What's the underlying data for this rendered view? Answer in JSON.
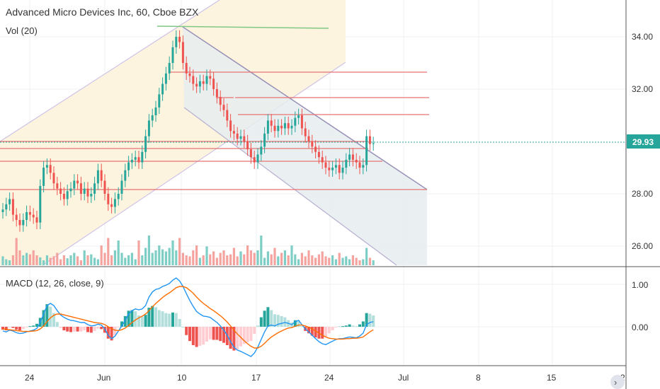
{
  "header": {
    "title": "Advanced Micro Devices Inc, 60, Cboe BZX",
    "volume_label": "Vol (20)",
    "macd_label": "MACD (12, 26, close, 9)"
  },
  "colors": {
    "up": "#26a69a",
    "down": "#ef5350",
    "vol_up": "#7fcec6",
    "vol_down": "#f4a39f",
    "last_price": "#26a69a",
    "macd_line": "#2196f3",
    "signal_line": "#ff6d00",
    "channel_fill_up": "#fdf3dc",
    "channel_fill_down": "#e6ecef",
    "hline": "#e57373",
    "top_line": "#81c784"
  },
  "price_axis": {
    "ticks": [
      "34.00",
      "32.00",
      "28.00",
      "26.00"
    ],
    "last_price": "29.93"
  },
  "macd_axis": {
    "ticks": [
      "1.00",
      "0.00"
    ]
  },
  "time_axis": {
    "labels": [
      "24",
      "Jun",
      "10",
      "17",
      "24",
      "Jul",
      "8",
      "15",
      "2"
    ]
  },
  "chart_data": [
    {
      "type": "candlestick",
      "title": "Advanced Micro Devices Inc, 60, Cboe BZX",
      "ylim": [
        25.3,
        35.3
      ],
      "last_price": 29.93,
      "series": [
        {
          "name": "Advanced Micro Devices Inc",
          "close": [
            27.4,
            27.6,
            27.8,
            27.2,
            27.0,
            26.8,
            27.0,
            27.3,
            27.2,
            27.1,
            26.9,
            28.3,
            29.0,
            29.1,
            28.8,
            28.4,
            28.2,
            28.0,
            27.8,
            28.1,
            28.2,
            28.5,
            28.4,
            28.0,
            28.2,
            27.9,
            28.0,
            28.4,
            28.9,
            28.5,
            28.0,
            27.6,
            27.5,
            27.8,
            28.0,
            28.5,
            28.9,
            29.2,
            29.3,
            29.4,
            29.2,
            29.6,
            30.2,
            30.8,
            31.0,
            31.3,
            31.8,
            32.2,
            32.6,
            33.0,
            33.6,
            34.0,
            33.8,
            33.0,
            32.6,
            32.5,
            32.2,
            32.1,
            32.3,
            32.2,
            32.5,
            32.4,
            32.0,
            31.7,
            31.4,
            31.2,
            30.8,
            30.4,
            30.3,
            30.1,
            30.2,
            30.0,
            29.7,
            29.4,
            29.2,
            29.5,
            29.8,
            30.3,
            30.8,
            30.6,
            30.4,
            30.6,
            30.5,
            30.7,
            30.5,
            30.6,
            30.9,
            31.0,
            30.5,
            30.2,
            30.0,
            29.8,
            29.6,
            29.4,
            29.2,
            29.0,
            28.9,
            29.0,
            29.1,
            28.8,
            29.0,
            29.3,
            29.5,
            29.3,
            29.2,
            29.0,
            29.1,
            30.2,
            29.9,
            29.93
          ],
          "ohlc_source": "hourly bars read from the chart, values approximate"
        }
      ]
    },
    {
      "type": "bar",
      "title": "Vol (20)",
      "values": [
        0.18,
        0.12,
        0.1,
        0.2,
        0.55,
        0.3,
        0.2,
        0.25,
        0.22,
        0.3,
        0.2,
        0.16,
        0.1,
        0.2,
        0.15,
        0.18,
        0.25,
        0.12,
        0.2,
        0.14,
        0.2,
        0.25,
        0.18,
        0.1,
        0.3,
        0.2,
        0.22,
        0.15,
        0.12,
        0.4,
        0.25,
        0.55,
        0.2,
        0.3,
        0.5,
        0.25,
        0.15,
        0.2,
        0.25,
        0.12,
        0.5,
        0.2,
        0.35,
        0.6,
        0.25,
        0.3,
        0.4,
        0.32,
        0.28,
        0.35,
        0.5,
        0.3,
        0.55,
        0.25,
        0.2,
        0.18,
        0.3,
        0.4,
        0.15,
        0.2,
        0.38,
        0.22,
        0.28,
        0.15,
        0.25,
        0.3,
        0.2,
        0.22,
        0.35,
        0.18,
        0.28,
        0.22,
        0.4,
        0.3,
        0.25,
        0.3,
        0.6,
        0.15,
        0.28,
        0.22,
        0.35,
        0.18,
        0.25,
        0.3,
        0.2,
        0.4,
        0.22,
        0.12,
        0.25,
        0.18,
        0.3,
        0.2,
        0.15,
        0.22,
        0.28,
        0.18,
        0.15,
        0.2,
        0.12,
        0.25,
        0.15,
        0.18,
        0.12,
        0.2,
        0.15,
        0.1,
        0.12,
        0.35,
        0.15,
        0.1
      ]
    },
    {
      "type": "line",
      "title": "MACD (12, 26, close, 9)",
      "ylim": [
        -0.95,
        1.3
      ],
      "series": [
        {
          "name": "MACD",
          "values": [
            -0.1,
            -0.12,
            -0.08,
            -0.1,
            -0.14,
            -0.16,
            -0.15,
            -0.12,
            -0.1,
            -0.08,
            -0.04,
            0.1,
            0.3,
            0.5,
            0.55,
            0.5,
            0.38,
            0.28,
            0.22,
            0.18,
            0.15,
            0.14,
            0.12,
            0.1,
            0.1,
            0.05,
            0.02,
            0.03,
            0.06,
            0.04,
            -0.05,
            -0.2,
            -0.28,
            -0.22,
            -0.1,
            0.02,
            0.15,
            0.3,
            0.38,
            0.42,
            0.4,
            0.42,
            0.5,
            0.7,
            0.82,
            0.88,
            0.9,
            0.95,
            0.98,
            1.02,
            1.1,
            1.15,
            1.08,
            0.95,
            0.78,
            0.62,
            0.48,
            0.36,
            0.3,
            0.25,
            0.24,
            0.22,
            0.16,
            0.1,
            0.02,
            -0.08,
            -0.2,
            -0.35,
            -0.48,
            -0.55,
            -0.58,
            -0.62,
            -0.66,
            -0.7,
            -0.62,
            -0.48,
            -0.3,
            -0.12,
            0.02,
            0.04,
            0.02,
            0.06,
            0.08,
            0.1,
            0.08,
            0.05,
            0.12,
            0.15,
            0.05,
            -0.05,
            -0.12,
            -0.2,
            -0.28,
            -0.35,
            -0.4,
            -0.42,
            -0.38,
            -0.34,
            -0.3,
            -0.28,
            -0.28,
            -0.26,
            -0.24,
            -0.25,
            -0.26,
            -0.22,
            -0.15,
            0.05,
            0.1,
            0.12
          ]
        },
        {
          "name": "Signal",
          "values": [
            -0.05,
            -0.06,
            -0.07,
            -0.08,
            -0.09,
            -0.1,
            -0.11,
            -0.11,
            -0.11,
            -0.1,
            -0.09,
            -0.05,
            0.02,
            0.12,
            0.21,
            0.27,
            0.3,
            0.3,
            0.28,
            0.26,
            0.24,
            0.22,
            0.2,
            0.18,
            0.16,
            0.14,
            0.12,
            0.1,
            0.09,
            0.08,
            0.05,
            0.0,
            -0.05,
            -0.08,
            -0.09,
            -0.07,
            -0.03,
            0.03,
            0.1,
            0.16,
            0.21,
            0.25,
            0.3,
            0.38,
            0.47,
            0.55,
            0.62,
            0.69,
            0.75,
            0.8,
            0.86,
            0.92,
            0.95,
            0.95,
            0.92,
            0.86,
            0.79,
            0.7,
            0.62,
            0.55,
            0.49,
            0.43,
            0.38,
            0.32,
            0.26,
            0.19,
            0.11,
            0.02,
            -0.08,
            -0.17,
            -0.25,
            -0.33,
            -0.4,
            -0.46,
            -0.5,
            -0.5,
            -0.46,
            -0.39,
            -0.31,
            -0.24,
            -0.19,
            -0.14,
            -0.1,
            -0.06,
            -0.03,
            -0.02,
            0.01,
            0.04,
            0.04,
            0.02,
            -0.01,
            -0.05,
            -0.1,
            -0.15,
            -0.2,
            -0.24,
            -0.27,
            -0.28,
            -0.29,
            -0.29,
            -0.29,
            -0.28,
            -0.28,
            -0.27,
            -0.27,
            -0.26,
            -0.24,
            -0.18,
            -0.12,
            -0.07
          ]
        }
      ]
    }
  ]
}
